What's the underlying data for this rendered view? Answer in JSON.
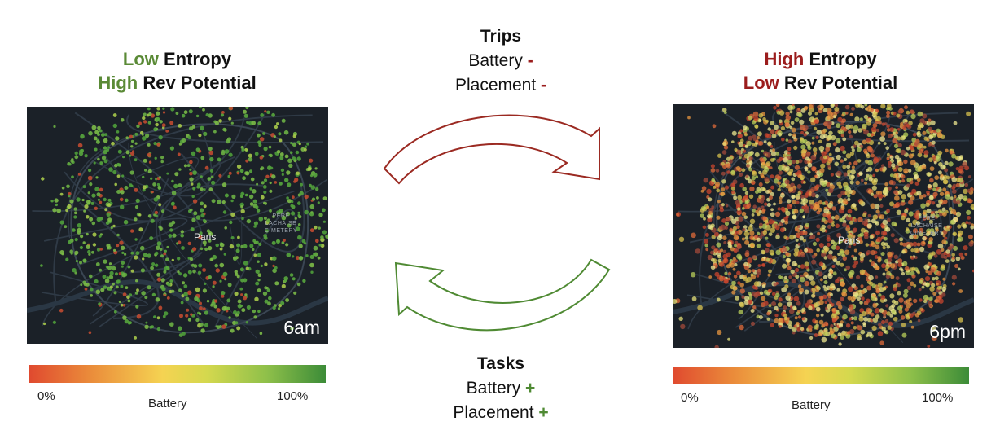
{
  "left_panel": {
    "title_line1_accent": "Low",
    "title_line1_rest": " Entropy",
    "title_line2_accent": "High",
    "title_line2_rest": " Rev Potential",
    "time_label": "6am",
    "city_label": "Paris",
    "district_label": "PÈRE\nLACHAISE\nCIMETERY",
    "scale_min": "0%",
    "scale_max": "100%",
    "scale_label": "Battery",
    "dot_palette": [
      "#4f9e3a",
      "#6cb044",
      "#58a63d",
      "#7cba47",
      "#a7c94a",
      "#c04a30"
    ]
  },
  "right_panel": {
    "title_line1_accent": "High",
    "title_line1_rest": " Entropy",
    "title_line2_accent": "Low",
    "title_line2_rest": " Rev Potential",
    "time_label": "6pm",
    "city_label": "Paris",
    "district_label": "PÈRE\nLACHAISE\nCIMETERY",
    "scale_min": "0%",
    "scale_max": "100%",
    "scale_label": "Battery",
    "dot_palette": [
      "#c9452e",
      "#e06b3a",
      "#e8963f",
      "#d8c24e",
      "#e5e078",
      "#b9cf5a",
      "#f0e890",
      "#a34a3a"
    ]
  },
  "trips": {
    "heading": "Trips",
    "line1": "Battery",
    "line1_sign": "-",
    "line2": "Placement",
    "line2_sign": "-",
    "arrow_color": "#9b2a22"
  },
  "tasks": {
    "heading": "Tasks",
    "line1": "Battery",
    "line1_sign": "+",
    "line2": "Placement",
    "line2_sign": "+",
    "arrow_color": "#4f8a33"
  }
}
